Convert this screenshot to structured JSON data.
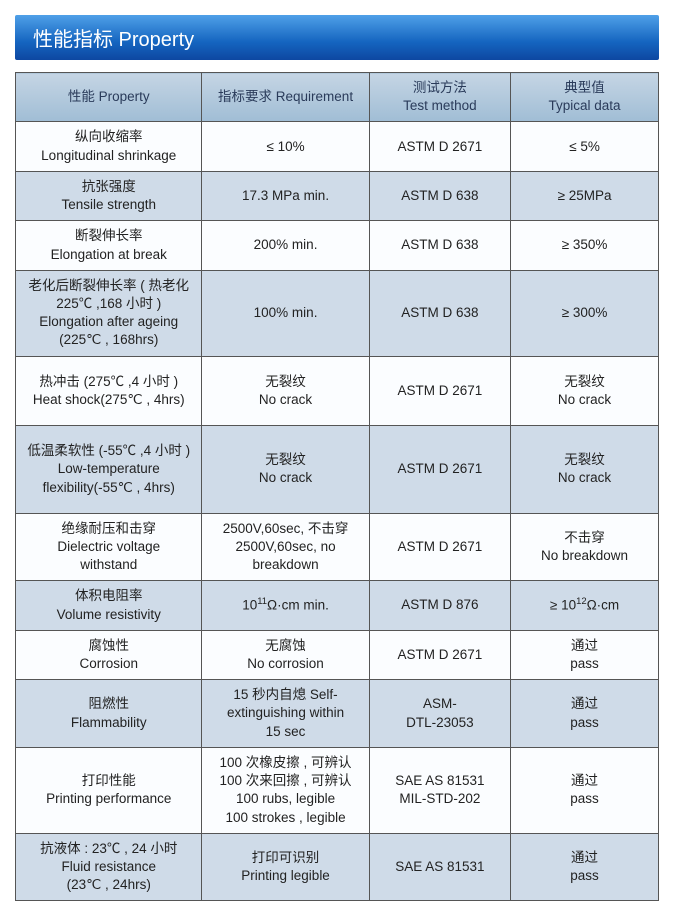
{
  "banner": "性能指标 Property",
  "colwidths": [
    "29%",
    "26%",
    "22%",
    "23%"
  ],
  "headers": [
    "性能 Property",
    "指标要求 Requirement",
    "测试方法\nTest method",
    "典型值\nTypical data"
  ],
  "rows": [
    {
      "alt": false,
      "cells": [
        "纵向收缩率\nLongitudinal shrinkage",
        "≤ 10%",
        "ASTM D 2671",
        "≤ 5%"
      ]
    },
    {
      "alt": true,
      "cells": [
        "抗张强度\nTensile strength",
        "17.3 MPa min.",
        "ASTM D 638",
        "≥ 25MPa"
      ]
    },
    {
      "alt": false,
      "cells": [
        "断裂伸长率\nElongation at break",
        "200% min.",
        "ASTM D 638",
        "≥ 350%"
      ]
    },
    {
      "alt": true,
      "cells": [
        "老化后断裂伸长率 ( 热老化 225℃ ,168 小时 )\nElongation after ageing\n(225℃ , 168hrs)",
        "100% min.",
        "ASTM D 638",
        "≥ 300%"
      ]
    },
    {
      "alt": false,
      "cells": [
        "热冲击 (275℃ ,4 小时 )\nHeat shock(275℃ , 4hrs)",
        "无裂纹\nNo crack",
        "ASTM D 2671",
        "无裂纹\nNo crack"
      ],
      "pad": true
    },
    {
      "alt": true,
      "cells": [
        "低温柔软性 (-55℃ ,4 小时 )\nLow-temperature\nflexibility(-55℃ , 4hrs)",
        "无裂纹\nNo crack",
        "ASTM D 2671",
        "无裂纹\nNo crack"
      ],
      "pad": true
    },
    {
      "alt": false,
      "cells": [
        "绝缘耐压和击穿\nDielectric voltage\nwithstand",
        "2500V,60sec, 不击穿\n2500V,60sec, no\nbreakdown",
        "ASTM D 2671",
        "不击穿\nNo breakdown"
      ]
    },
    {
      "alt": true,
      "cells": [
        "体积电阻率\nVolume resistivity",
        "10^{11}Ω·cm min.",
        "ASTM D 876",
        "≥ 10^{12}Ω·cm"
      ]
    },
    {
      "alt": false,
      "cells": [
        "腐蚀性\nCorrosion",
        "无腐蚀\nNo corrosion",
        "ASTM D 2671",
        "通过\npass"
      ]
    },
    {
      "alt": true,
      "cells": [
        "阻燃性\nFlammability",
        "15 秒内自熄 Self-\nextinguishing within\n15 sec",
        "ASM-\nDTL-23053",
        "通过\npass"
      ]
    },
    {
      "alt": false,
      "cells": [
        "打印性能\nPrinting performance",
        "100 次橡皮擦 , 可辨认\n100 次来回擦 , 可辨认\n100 rubs, legible\n100 strokes , legible",
        "SAE AS 81531\nMIL-STD-202",
        "通过\npass"
      ]
    },
    {
      "alt": true,
      "cells": [
        "抗液体 : 23℃ , 24 小时\nFluid resistance\n(23℃ , 24hrs)",
        "打印可识别\nPrinting legible",
        "SAE AS 81531",
        "通过\npass"
      ]
    }
  ]
}
